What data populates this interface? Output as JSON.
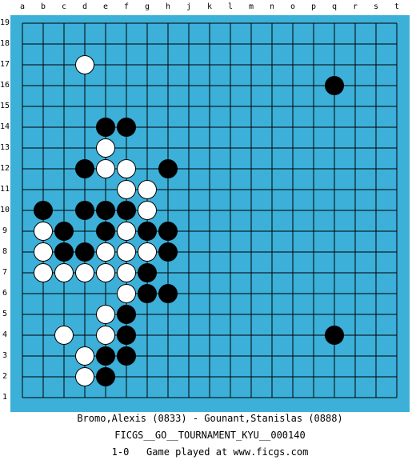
{
  "board": {
    "size": 19,
    "col_labels": [
      "a",
      "b",
      "c",
      "d",
      "e",
      "f",
      "g",
      "h",
      "j",
      "k",
      "l",
      "m",
      "n",
      "o",
      "p",
      "q",
      "r",
      "s",
      "t"
    ],
    "row_labels": [
      "19",
      "18",
      "17",
      "16",
      "15",
      "14",
      "13",
      "12",
      "11",
      "10",
      "9",
      "8",
      "7",
      "6",
      "5",
      "4",
      "3",
      "2",
      "1"
    ],
    "board_color": "#3cb0d8",
    "black_stones": [
      "q16",
      "e14",
      "f14",
      "d12",
      "h12",
      "b10",
      "d10",
      "e10",
      "f10",
      "c9",
      "e9",
      "g9",
      "h9",
      "c8",
      "d8",
      "h8",
      "g7",
      "g6",
      "h6",
      "f5",
      "f4",
      "q4",
      "e3",
      "f3",
      "e2"
    ],
    "white_stones": [
      "d17",
      "e13",
      "e12",
      "f12",
      "f11",
      "g11",
      "g10",
      "b9",
      "f9",
      "b8",
      "e8",
      "f8",
      "g8",
      "b7",
      "c7",
      "d7",
      "e7",
      "f7",
      "f6",
      "e5",
      "c4",
      "e4",
      "d3",
      "d2"
    ]
  },
  "footer": {
    "players": "Bromo,Alexis (0833) - Gounant,Stanislas (0888)",
    "event": "FICGS__GO__TOURNAMENT_KYU__000140",
    "result_line": "1-0   Game played at www.ficgs.com"
  }
}
